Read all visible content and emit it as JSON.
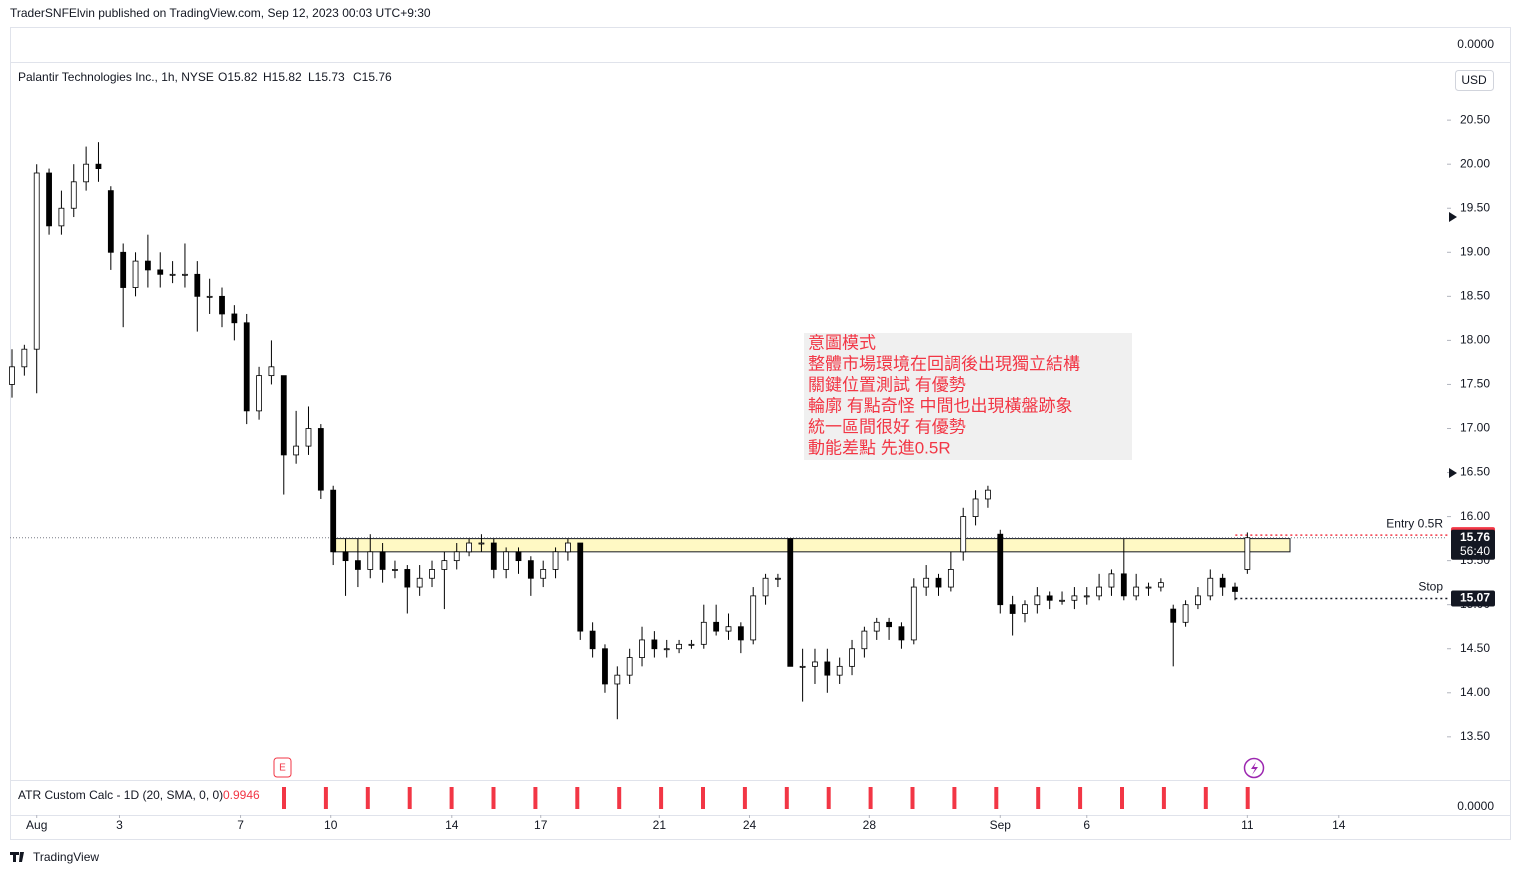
{
  "header": {
    "publisher": "TraderSNFElvin published on TradingView.com, Sep 12, 2023 00:03 UTC+9:30",
    "brand": "TradingView"
  },
  "chart_data": {
    "type": "candlestick",
    "title": "Palantir Technologies Inc., 1h, NYSE",
    "ohlc_legend": [
      "O15.82",
      "H15.82",
      "L15.73",
      "C15.76"
    ],
    "currency": "USD",
    "pane_scale_label": "0.0000",
    "annotation": [
      "意圖模式",
      "整體市場環境在回調後出現獨立結構",
      "關鍵位置測試 有優勢",
      "輪廓 有點奇怪 中間也出現橫盤跡象",
      "統一區間很好 有優勢",
      "動能差點 先進0.5R"
    ],
    "ohlc": [
      [
        17.5,
        17.9,
        17.35,
        17.7
      ],
      [
        17.7,
        17.95,
        17.6,
        17.9
      ],
      [
        17.9,
        20.0,
        17.4,
        19.9
      ],
      [
        19.9,
        19.95,
        19.2,
        19.3
      ],
      [
        19.3,
        19.7,
        19.2,
        19.5
      ],
      [
        19.5,
        20.0,
        19.4,
        19.8
      ],
      [
        19.8,
        20.2,
        19.7,
        20.0
      ],
      [
        20.0,
        20.25,
        19.8,
        19.95
      ],
      [
        19.7,
        19.75,
        18.8,
        19.0
      ],
      [
        19.0,
        19.1,
        18.15,
        18.6
      ],
      [
        18.6,
        19.0,
        18.5,
        18.9
      ],
      [
        18.9,
        19.2,
        18.6,
        18.8
      ],
      [
        18.8,
        19.0,
        18.6,
        18.75
      ],
      [
        18.75,
        18.9,
        18.65,
        18.75
      ],
      [
        18.75,
        19.1,
        18.6,
        18.75
      ],
      [
        18.75,
        18.9,
        18.1,
        18.5
      ],
      [
        18.5,
        18.7,
        18.3,
        18.5
      ],
      [
        18.5,
        18.6,
        18.15,
        18.3
      ],
      [
        18.3,
        18.4,
        18.0,
        18.2
      ],
      [
        18.2,
        18.3,
        17.05,
        17.2
      ],
      [
        17.2,
        17.7,
        17.1,
        17.6
      ],
      [
        17.6,
        18.0,
        17.5,
        17.7
      ],
      [
        17.6,
        17.6,
        16.25,
        16.7
      ],
      [
        16.7,
        17.2,
        16.6,
        16.8
      ],
      [
        16.8,
        17.25,
        16.7,
        17.0
      ],
      [
        17.0,
        17.05,
        16.2,
        16.3
      ],
      [
        16.3,
        16.35,
        15.45,
        15.6
      ],
      [
        15.6,
        15.75,
        15.1,
        15.5
      ],
      [
        15.5,
        15.75,
        15.2,
        15.4
      ],
      [
        15.4,
        15.8,
        15.3,
        15.6
      ],
      [
        15.6,
        15.7,
        15.25,
        15.4
      ],
      [
        15.4,
        15.5,
        15.3,
        15.4
      ],
      [
        15.4,
        15.45,
        14.9,
        15.2
      ],
      [
        15.2,
        15.45,
        15.1,
        15.3
      ],
      [
        15.3,
        15.5,
        15.2,
        15.4
      ],
      [
        15.4,
        15.6,
        14.95,
        15.5
      ],
      [
        15.5,
        15.7,
        15.4,
        15.6
      ],
      [
        15.6,
        15.75,
        15.55,
        15.7
      ],
      [
        15.7,
        15.8,
        15.6,
        15.7
      ],
      [
        15.7,
        15.75,
        15.3,
        15.4
      ],
      [
        15.4,
        15.65,
        15.3,
        15.6
      ],
      [
        15.6,
        15.65,
        15.35,
        15.5
      ],
      [
        15.5,
        15.55,
        15.1,
        15.3
      ],
      [
        15.3,
        15.5,
        15.2,
        15.4
      ],
      [
        15.4,
        15.65,
        15.3,
        15.6
      ],
      [
        15.6,
        15.75,
        15.5,
        15.7
      ],
      [
        15.7,
        15.7,
        14.6,
        14.7
      ],
      [
        14.7,
        14.8,
        14.4,
        14.5
      ],
      [
        14.5,
        14.55,
        14.0,
        14.1
      ],
      [
        14.1,
        14.3,
        13.7,
        14.2
      ],
      [
        14.2,
        14.5,
        14.1,
        14.4
      ],
      [
        14.4,
        14.75,
        14.3,
        14.6
      ],
      [
        14.6,
        14.7,
        14.4,
        14.5
      ],
      [
        14.5,
        14.6,
        14.4,
        14.5
      ],
      [
        14.5,
        14.6,
        14.45,
        14.55
      ],
      [
        14.55,
        14.6,
        14.5,
        14.55
      ],
      [
        14.55,
        15.0,
        14.5,
        14.8
      ],
      [
        14.8,
        15.0,
        14.65,
        14.7
      ],
      [
        14.7,
        14.9,
        14.6,
        14.75
      ],
      [
        14.75,
        14.8,
        14.45,
        14.6
      ],
      [
        14.6,
        15.2,
        14.55,
        15.1
      ],
      [
        15.1,
        15.35,
        15.0,
        15.3
      ],
      [
        15.3,
        15.35,
        15.2,
        15.3
      ],
      [
        15.75,
        15.75,
        14.3,
        14.3
      ],
      [
        14.3,
        14.5,
        13.9,
        14.3
      ],
      [
        14.3,
        14.5,
        14.1,
        14.35
      ],
      [
        14.35,
        14.5,
        14.0,
        14.2
      ],
      [
        14.2,
        14.4,
        14.1,
        14.3
      ],
      [
        14.3,
        14.6,
        14.2,
        14.5
      ],
      [
        14.5,
        14.75,
        14.4,
        14.7
      ],
      [
        14.7,
        14.85,
        14.6,
        14.8
      ],
      [
        14.8,
        14.85,
        14.6,
        14.75
      ],
      [
        14.75,
        14.8,
        14.5,
        14.6
      ],
      [
        14.6,
        15.3,
        14.55,
        15.2
      ],
      [
        15.2,
        15.45,
        15.1,
        15.3
      ],
      [
        15.3,
        15.35,
        15.1,
        15.2
      ],
      [
        15.2,
        15.6,
        15.15,
        15.4
      ],
      [
        15.6,
        16.1,
        15.5,
        16.0
      ],
      [
        16.0,
        16.3,
        15.9,
        16.2
      ],
      [
        16.2,
        16.35,
        16.1,
        16.3
      ],
      [
        15.8,
        15.85,
        14.9,
        15.0
      ],
      [
        15.0,
        15.1,
        14.65,
        14.9
      ],
      [
        14.9,
        15.05,
        14.8,
        15.0
      ],
      [
        15.0,
        15.2,
        14.9,
        15.1
      ],
      [
        15.1,
        15.15,
        14.95,
        15.05
      ],
      [
        15.05,
        15.15,
        15.0,
        15.05
      ],
      [
        15.05,
        15.2,
        14.95,
        15.1
      ],
      [
        15.1,
        15.2,
        15.0,
        15.1
      ],
      [
        15.1,
        15.35,
        15.05,
        15.2
      ],
      [
        15.2,
        15.4,
        15.1,
        15.35
      ],
      [
        15.35,
        15.75,
        15.05,
        15.1
      ],
      [
        15.1,
        15.35,
        15.05,
        15.2
      ],
      [
        15.2,
        15.25,
        15.1,
        15.2
      ],
      [
        15.2,
        15.3,
        15.15,
        15.25
      ],
      [
        14.95,
        15.0,
        14.3,
        14.8
      ],
      [
        14.8,
        15.05,
        14.75,
        15.0
      ],
      [
        15.0,
        15.2,
        14.95,
        15.1
      ],
      [
        15.1,
        15.4,
        15.05,
        15.3
      ],
      [
        15.3,
        15.35,
        15.1,
        15.2
      ],
      [
        15.2,
        15.25,
        15.05,
        15.15
      ],
      [
        15.4,
        15.82,
        15.35,
        15.76
      ]
    ],
    "up_color": "#ffffff",
    "down_color": "#000000",
    "xlim": [
      0,
      116
    ],
    "xticks": [
      {
        "value": 2,
        "label": "Aug"
      },
      {
        "value": 8.7,
        "label": "3"
      },
      {
        "value": 18.5,
        "label": "7"
      },
      {
        "value": 25.8,
        "label": "10"
      },
      {
        "value": 35.6,
        "label": "14"
      },
      {
        "value": 42.8,
        "label": "17"
      },
      {
        "value": 52.4,
        "label": "21"
      },
      {
        "value": 59.7,
        "label": "24"
      },
      {
        "value": 69.4,
        "label": "28"
      },
      {
        "value": 80,
        "label": "Sep"
      },
      {
        "value": 87,
        "label": "6"
      },
      {
        "value": 100,
        "label": "11"
      },
      {
        "value": 107.4,
        "label": "14"
      }
    ],
    "ylim": [
      13.01,
      21.16
    ],
    "yticks": [
      {
        "value": 13.5,
        "label": "13.50"
      },
      {
        "value": 14,
        "label": "14.00"
      },
      {
        "value": 14.5,
        "label": "14.50"
      },
      {
        "value": 15,
        "label": "15.00"
      },
      {
        "value": 15.5,
        "label": "15.50"
      },
      {
        "value": 16,
        "label": "16.00"
      },
      {
        "value": 16.5,
        "label": "16.50"
      },
      {
        "value": 17,
        "label": "17.00"
      },
      {
        "value": 17.5,
        "label": "17.50"
      },
      {
        "value": 18,
        "label": "18.00"
      },
      {
        "value": 18.5,
        "label": "18.50"
      },
      {
        "value": 19,
        "label": "19.00"
      },
      {
        "value": 19.5,
        "label": "19.50"
      },
      {
        "value": 20,
        "label": "20.00"
      },
      {
        "value": 20.5,
        "label": "20.50"
      }
    ],
    "zone": [
      15.6,
      15.75
    ],
    "levels": [
      {
        "label": "Entry 0.5R",
        "value": 15.79,
        "color": "#f23645"
      },
      {
        "label": "Stop",
        "value": 15.07,
        "color": "#131722"
      }
    ],
    "last_price": 15.76,
    "countdown": "56:40",
    "indicator": {
      "name": "ATR Custom Calc - 1D (20, SMA, 0, 0)",
      "value": 0.9946
    }
  }
}
